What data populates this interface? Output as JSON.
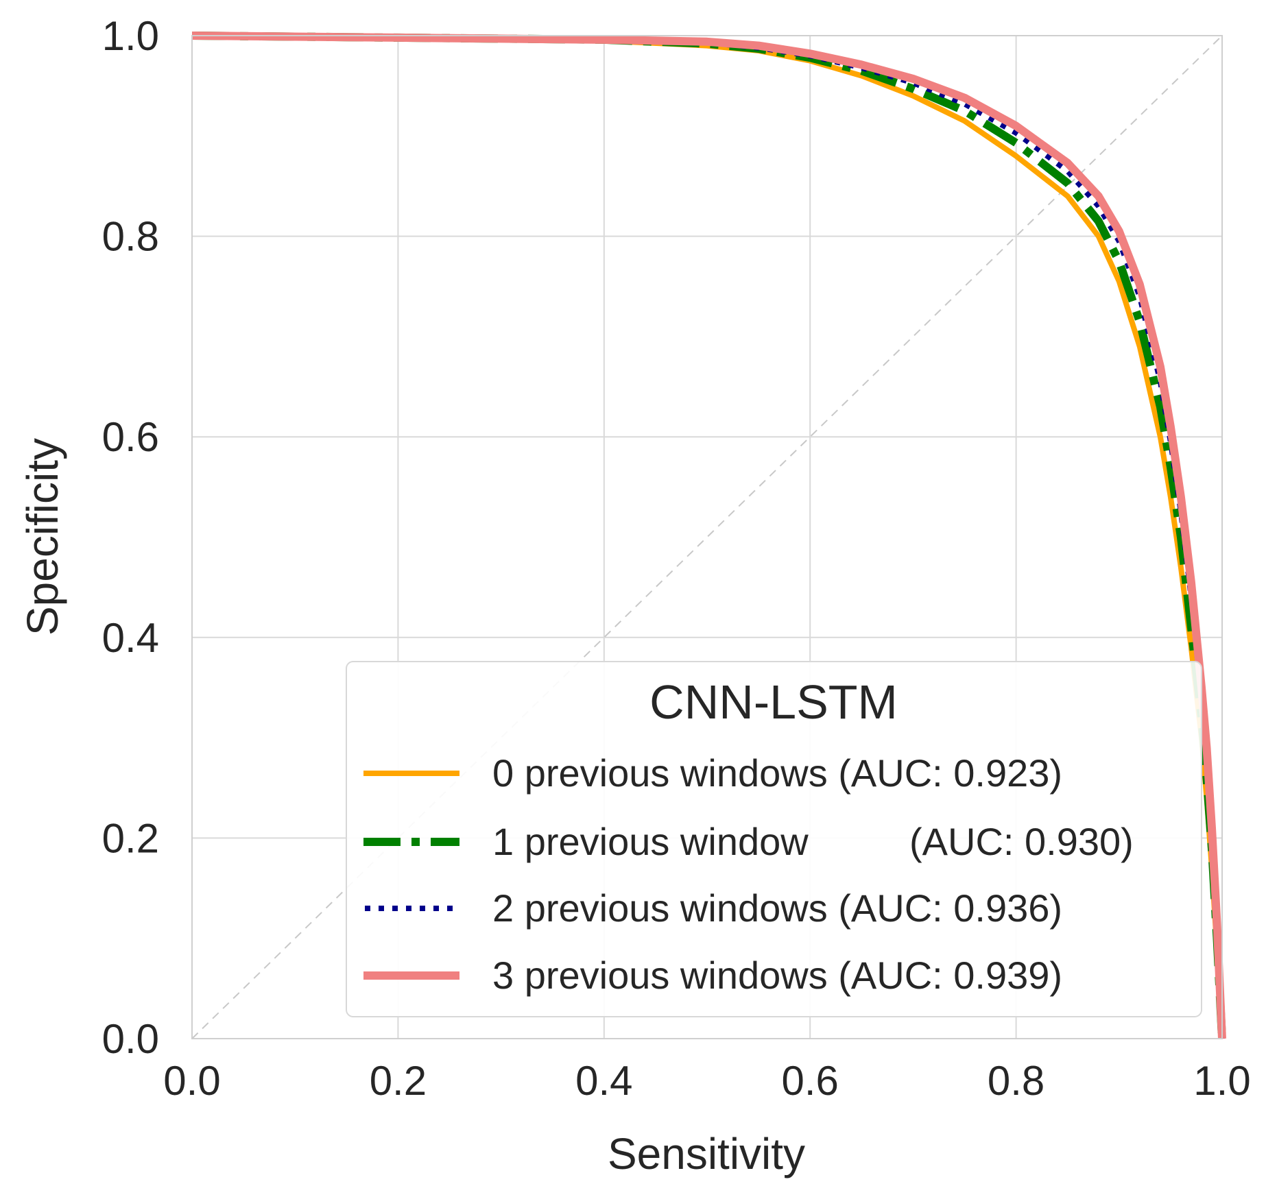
{
  "chart_data": {
    "type": "line",
    "title": "",
    "xlabel": "Sensitivity",
    "ylabel": "Specificity",
    "xlim": [
      0.0,
      1.0
    ],
    "ylim": [
      0.0,
      1.0
    ],
    "xticks": [
      "0.0",
      "0.2",
      "0.4",
      "0.6",
      "0.8",
      "1.0"
    ],
    "yticks": [
      "0.0",
      "0.2",
      "0.4",
      "0.6",
      "0.8",
      "1.0"
    ],
    "grid": true,
    "reference_line": {
      "x": [
        0,
        1
      ],
      "y": [
        0,
        1
      ],
      "style": "dashed",
      "color": "#c8c8c8"
    },
    "legend": {
      "title": "CNN-LSTM",
      "placement": "lower-right"
    },
    "series": [
      {
        "name": "0 previous windows",
        "label": "0 previous windows (AUC: 0.923)",
        "color": "#ffa500",
        "style": "solid",
        "x": [
          0.0,
          0.1,
          0.2,
          0.3,
          0.4,
          0.5,
          0.55,
          0.6,
          0.65,
          0.7,
          0.75,
          0.8,
          0.85,
          0.88,
          0.9,
          0.92,
          0.94,
          0.95,
          0.96,
          0.97,
          0.98,
          0.985,
          0.99,
          0.995,
          1.0
        ],
        "y": [
          1.0,
          0.999,
          0.998,
          0.997,
          0.995,
          0.99,
          0.985,
          0.975,
          0.96,
          0.94,
          0.915,
          0.88,
          0.84,
          0.8,
          0.755,
          0.69,
          0.6,
          0.54,
          0.47,
          0.39,
          0.3,
          0.24,
          0.17,
          0.09,
          0.0
        ]
      },
      {
        "name": "1 previous window",
        "label_name": "1 previous window",
        "label_auc": "(AUC: 0.930)",
        "color": "#008000",
        "style": "dashdot",
        "x": [
          0.0,
          0.1,
          0.2,
          0.3,
          0.4,
          0.5,
          0.55,
          0.6,
          0.65,
          0.7,
          0.75,
          0.8,
          0.85,
          0.88,
          0.9,
          0.92,
          0.94,
          0.95,
          0.96,
          0.97,
          0.98,
          0.985,
          0.99,
          0.995,
          1.0
        ],
        "y": [
          1.0,
          0.999,
          0.998,
          0.997,
          0.996,
          0.992,
          0.987,
          0.978,
          0.965,
          0.947,
          0.925,
          0.893,
          0.853,
          0.815,
          0.775,
          0.715,
          0.63,
          0.57,
          0.5,
          0.41,
          0.32,
          0.26,
          0.19,
          0.1,
          0.0
        ]
      },
      {
        "name": "2 previous windows",
        "label": "2 previous windows (AUC: 0.936)",
        "color": "#00008b",
        "style": "dotted",
        "x": [
          0.0,
          0.1,
          0.2,
          0.3,
          0.4,
          0.5,
          0.55,
          0.6,
          0.65,
          0.7,
          0.75,
          0.8,
          0.85,
          0.88,
          0.9,
          0.92,
          0.94,
          0.95,
          0.96,
          0.97,
          0.98,
          0.985,
          0.99,
          0.995,
          1.0
        ],
        "y": [
          1.0,
          0.999,
          0.998,
          0.997,
          0.996,
          0.993,
          0.988,
          0.98,
          0.968,
          0.953,
          0.932,
          0.903,
          0.865,
          0.83,
          0.795,
          0.74,
          0.655,
          0.595,
          0.525,
          0.44,
          0.34,
          0.28,
          0.2,
          0.11,
          0.0
        ]
      },
      {
        "name": "3 previous windows",
        "label": "3 previous windows (AUC: 0.939)",
        "color": "#f08080",
        "style": "solid",
        "x": [
          0.0,
          0.1,
          0.2,
          0.3,
          0.4,
          0.5,
          0.55,
          0.6,
          0.65,
          0.7,
          0.75,
          0.8,
          0.85,
          0.88,
          0.9,
          0.92,
          0.94,
          0.95,
          0.96,
          0.97,
          0.98,
          0.985,
          0.99,
          0.995,
          1.0
        ],
        "y": [
          1.0,
          0.999,
          0.998,
          0.997,
          0.996,
          0.994,
          0.99,
          0.982,
          0.971,
          0.957,
          0.938,
          0.91,
          0.873,
          0.84,
          0.805,
          0.752,
          0.67,
          0.61,
          0.54,
          0.455,
          0.35,
          0.29,
          0.21,
          0.115,
          0.0
        ]
      }
    ]
  }
}
